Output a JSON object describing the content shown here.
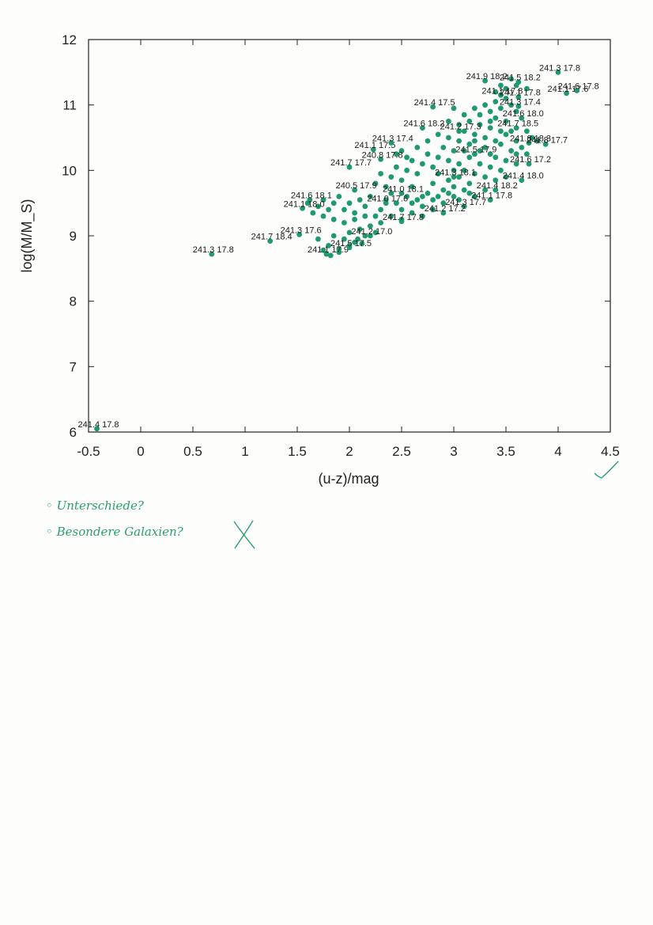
{
  "chart_data": {
    "type": "scatter",
    "title": "",
    "xlabel": "(u-z)/mag",
    "ylabel": "log(M/M_S)",
    "xlim": [
      -0.5,
      4.5
    ],
    "ylim": [
      6,
      12
    ],
    "xticks": [
      "-0.5",
      "0",
      "0.5",
      "1",
      "1.5",
      "2",
      "2.5",
      "3",
      "3.5",
      "4",
      "4.5"
    ],
    "yticks": [
      "6",
      "7",
      "8",
      "9",
      "10",
      "11",
      "12"
    ],
    "grid": false,
    "legend": "none",
    "marker_color": "#1f9a6a",
    "labeled_points": [
      {
        "x": -0.42,
        "y": 6.05,
        "label": "241.4 17.8"
      },
      {
        "x": 0.68,
        "y": 8.72,
        "label": "241.3 17.8"
      },
      {
        "x": 1.24,
        "y": 8.92,
        "label": "241.7 18.4"
      },
      {
        "x": 1.52,
        "y": 9.02,
        "label": "241.3 17.6"
      },
      {
        "x": 1.78,
        "y": 8.72,
        "label": "241.1 17.9"
      },
      {
        "x": 1.62,
        "y": 9.55,
        "label": "241.6 18.1"
      },
      {
        "x": 1.55,
        "y": 9.42,
        "label": "241.1 18.0"
      },
      {
        "x": 2.05,
        "y": 9.7,
        "label": "240.5 17.9"
      },
      {
        "x": 2.0,
        "y": 10.05,
        "label": "241.7 17.7"
      },
      {
        "x": 2.3,
        "y": 10.17,
        "label": "240.8 17.8"
      },
      {
        "x": 2.23,
        "y": 10.32,
        "label": "241.1 17.5"
      },
      {
        "x": 2.4,
        "y": 10.42,
        "label": "241.3 17.4"
      },
      {
        "x": 2.5,
        "y": 9.65,
        "label": "241.0 18.1"
      },
      {
        "x": 2.2,
        "y": 9.0,
        "label": "241.2 17.0"
      },
      {
        "x": 2.0,
        "y": 8.82,
        "label": "241.5 17.5"
      },
      {
        "x": 2.7,
        "y": 10.65,
        "label": "241.6 18.2"
      },
      {
        "x": 2.8,
        "y": 10.97,
        "label": "241.4 17.5"
      },
      {
        "x": 3.05,
        "y": 10.6,
        "label": "241.2 17.3"
      },
      {
        "x": 3.3,
        "y": 11.37,
        "label": "241.9 18.2"
      },
      {
        "x": 3.45,
        "y": 11.15,
        "label": "241.1 17.8"
      },
      {
        "x": 4.0,
        "y": 11.5,
        "label": "241.3 17.8"
      },
      {
        "x": 3.62,
        "y": 11.35,
        "label": "241.5 18.2"
      },
      {
        "x": 3.62,
        "y": 11.12,
        "label": "241.1 17.8"
      },
      {
        "x": 4.08,
        "y": 11.18,
        "label": "241.1 17.6"
      },
      {
        "x": 4.18,
        "y": 11.22,
        "label": "241.6 17.8"
      },
      {
        "x": 3.62,
        "y": 10.98,
        "label": "241.3 17.4"
      },
      {
        "x": 3.65,
        "y": 10.8,
        "label": "241.6 18.0"
      },
      {
        "x": 3.6,
        "y": 10.65,
        "label": "241.7 18.5"
      },
      {
        "x": 3.72,
        "y": 10.42,
        "label": "241.8 18.3"
      },
      {
        "x": 3.88,
        "y": 10.4,
        "label": "241.8 17.7"
      },
      {
        "x": 3.72,
        "y": 10.1,
        "label": "241.6 17.2"
      },
      {
        "x": 3.65,
        "y": 9.85,
        "label": "241.4 18.0"
      },
      {
        "x": 3.4,
        "y": 9.7,
        "label": "241.4 18.2"
      },
      {
        "x": 3.35,
        "y": 9.55,
        "label": "241.1 17.8"
      },
      {
        "x": 3.1,
        "y": 9.45,
        "label": "241.3 17.7"
      },
      {
        "x": 2.9,
        "y": 9.35,
        "label": "241.2 17.2"
      },
      {
        "x": 2.5,
        "y": 9.22,
        "label": "241.7 17.8"
      },
      {
        "x": 2.35,
        "y": 9.5,
        "label": "241.0 17.6"
      },
      {
        "x": 3.2,
        "y": 10.25,
        "label": "241.5 17.9"
      },
      {
        "x": 3.0,
        "y": 9.9,
        "label": "241.3 18.1"
      }
    ],
    "dense_points": [
      [
        1.6,
        9.5
      ],
      [
        1.7,
        9.45
      ],
      [
        1.75,
        9.55
      ],
      [
        1.8,
        9.4
      ],
      [
        1.85,
        9.5
      ],
      [
        1.9,
        9.6
      ],
      [
        1.95,
        9.4
      ],
      [
        2.0,
        9.5
      ],
      [
        2.05,
        9.35
      ],
      [
        2.1,
        9.55
      ],
      [
        2.15,
        9.45
      ],
      [
        2.2,
        9.6
      ],
      [
        1.7,
        8.95
      ],
      [
        1.8,
        8.85
      ],
      [
        1.85,
        9.0
      ],
      [
        1.9,
        8.8
      ],
      [
        1.95,
        8.95
      ],
      [
        2.0,
        9.05
      ],
      [
        2.05,
        8.9
      ],
      [
        2.1,
        9.1
      ],
      [
        2.15,
        9.0
      ],
      [
        2.2,
        9.15
      ],
      [
        2.25,
        9.05
      ],
      [
        2.3,
        9.2
      ],
      [
        1.75,
        8.78
      ],
      [
        1.82,
        8.7
      ],
      [
        1.9,
        8.75
      ],
      [
        2.0,
        8.85
      ],
      [
        2.08,
        8.95
      ],
      [
        2.12,
        8.88
      ],
      [
        2.25,
        9.3
      ],
      [
        2.3,
        9.4
      ],
      [
        2.35,
        9.55
      ],
      [
        2.4,
        9.65
      ],
      [
        2.45,
        9.5
      ],
      [
        2.5,
        9.4
      ],
      [
        2.55,
        9.6
      ],
      [
        2.6,
        9.75
      ],
      [
        2.65,
        9.55
      ],
      [
        2.7,
        9.45
      ],
      [
        2.75,
        9.65
      ],
      [
        2.8,
        9.8
      ],
      [
        2.25,
        9.8
      ],
      [
        2.3,
        9.95
      ],
      [
        2.35,
        9.75
      ],
      [
        2.4,
        9.9
      ],
      [
        2.45,
        10.05
      ],
      [
        2.5,
        9.85
      ],
      [
        2.55,
        10.0
      ],
      [
        2.6,
        10.15
      ],
      [
        2.65,
        9.95
      ],
      [
        2.7,
        10.1
      ],
      [
        2.75,
        10.25
      ],
      [
        2.8,
        10.05
      ],
      [
        2.4,
        9.3
      ],
      [
        2.5,
        9.25
      ],
      [
        2.6,
        9.35
      ],
      [
        2.7,
        9.3
      ],
      [
        2.8,
        9.4
      ],
      [
        2.9,
        9.5
      ],
      [
        2.85,
        9.6
      ],
      [
        2.9,
        9.7
      ],
      [
        2.95,
        9.85
      ],
      [
        3.0,
        9.75
      ],
      [
        3.05,
        9.9
      ],
      [
        3.1,
        10.0
      ],
      [
        2.85,
        10.2
      ],
      [
        2.9,
        10.35
      ],
      [
        2.95,
        10.5
      ],
      [
        3.0,
        10.3
      ],
      [
        3.05,
        10.45
      ],
      [
        3.1,
        10.6
      ],
      [
        3.15,
        10.4
      ],
      [
        3.2,
        10.55
      ],
      [
        3.25,
        10.7
      ],
      [
        3.3,
        10.5
      ],
      [
        3.35,
        10.65
      ],
      [
        3.4,
        10.8
      ],
      [
        3.15,
        9.8
      ],
      [
        3.2,
        9.95
      ],
      [
        3.25,
        10.1
      ],
      [
        3.3,
        9.9
      ],
      [
        3.35,
        10.05
      ],
      [
        3.4,
        10.2
      ],
      [
        3.45,
        10.0
      ],
      [
        3.5,
        10.15
      ],
      [
        3.55,
        10.3
      ],
      [
        3.6,
        10.1
      ],
      [
        3.45,
        10.4
      ],
      [
        3.5,
        10.55
      ],
      [
        3.1,
        10.85
      ],
      [
        3.2,
        10.95
      ],
      [
        3.3,
        11.0
      ],
      [
        3.35,
        10.9
      ],
      [
        3.4,
        11.05
      ],
      [
        3.45,
        10.95
      ],
      [
        3.5,
        11.1
      ],
      [
        3.55,
        11.0
      ],
      [
        3.6,
        10.9
      ],
      [
        3.5,
        10.75
      ],
      [
        3.55,
        10.6
      ],
      [
        3.6,
        10.45
      ],
      [
        3.0,
        10.95
      ],
      [
        2.95,
        10.75
      ],
      [
        3.05,
        10.7
      ],
      [
        3.15,
        10.75
      ],
      [
        3.25,
        10.85
      ],
      [
        3.35,
        10.75
      ],
      [
        3.4,
        11.2
      ],
      [
        3.45,
        11.3
      ],
      [
        3.5,
        11.25
      ],
      [
        3.55,
        11.4
      ],
      [
        3.6,
        11.3
      ],
      [
        3.7,
        11.25
      ],
      [
        3.0,
        9.6
      ],
      [
        3.1,
        9.7
      ],
      [
        3.2,
        9.6
      ],
      [
        3.3,
        9.7
      ],
      [
        3.4,
        9.85
      ],
      [
        3.5,
        9.9
      ],
      [
        2.6,
        9.5
      ],
      [
        2.7,
        9.6
      ],
      [
        2.8,
        9.55
      ],
      [
        2.95,
        9.65
      ],
      [
        3.05,
        9.55
      ],
      [
        3.15,
        9.65
      ],
      [
        3.7,
        10.6
      ],
      [
        3.75,
        10.5
      ],
      [
        3.65,
        10.35
      ],
      [
        3.7,
        10.25
      ],
      [
        3.8,
        10.45
      ],
      [
        3.6,
        10.25
      ],
      [
        3.25,
        10.3
      ],
      [
        3.15,
        10.2
      ],
      [
        3.05,
        10.1
      ],
      [
        2.95,
        10.15
      ],
      [
        2.85,
        9.95
      ],
      [
        3.0,
        10.0
      ],
      [
        2.45,
        10.25
      ],
      [
        2.5,
        10.3
      ],
      [
        2.55,
        10.2
      ],
      [
        2.65,
        10.35
      ],
      [
        2.75,
        10.45
      ],
      [
        2.85,
        10.55
      ],
      [
        1.65,
        9.35
      ],
      [
        1.75,
        9.3
      ],
      [
        1.85,
        9.25
      ],
      [
        1.95,
        9.2
      ],
      [
        2.05,
        9.25
      ],
      [
        2.15,
        9.3
      ],
      [
        3.3,
        10.35
      ],
      [
        3.2,
        10.45
      ],
      [
        3.1,
        10.3
      ],
      [
        3.4,
        10.45
      ],
      [
        3.45,
        10.6
      ],
      [
        3.35,
        10.25
      ]
    ]
  },
  "annotations": {
    "note_line_1": "◦ Unterschiede?",
    "note_line_2": "◦ Besondere Galaxien?"
  }
}
